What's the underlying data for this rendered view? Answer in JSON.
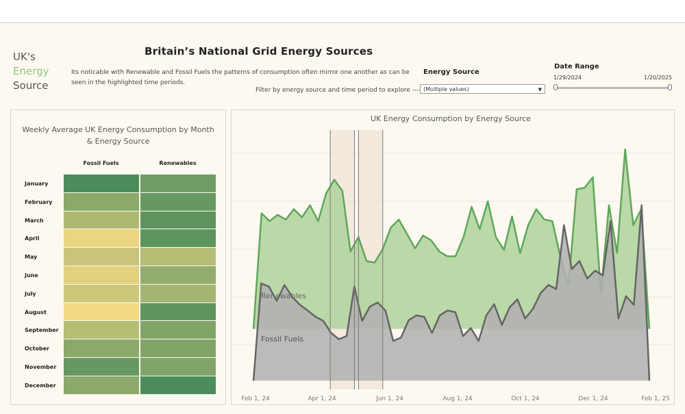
{
  "brand": {
    "line1": "UK's",
    "line2": "Energy",
    "line3": "Source"
  },
  "title": "Britain’s National Grid Energy Sources",
  "description": "Its noticable with Renewable and Fossil Fuels the patterns of consumption often mirror one another as can be seen in the highlighted time periods.",
  "filter_hint": "Filter by energy source and time period to explore ---->",
  "energy_source": {
    "label": "Energy Source",
    "value": "(Multiple values)"
  },
  "date_range": {
    "label": "Date Range",
    "start": "1/29/2024",
    "end": "1/20/2025"
  },
  "colors": {
    "renewables_line": "#5ea65a",
    "renewables_fill": "#b3d4a0",
    "fossil_line": "#646464",
    "fossil_fill": "#b0b0b0",
    "brand_accent": "#94c47f",
    "highlight": "#f0e3d6"
  },
  "chart_data": [
    {
      "type": "heatmap",
      "title": "Weekly Average UK Energy Consumption by Month & Energy Source",
      "columns": [
        "Fossil Fuels",
        "Renewables"
      ],
      "rows": [
        "January",
        "February",
        "March",
        "April",
        "May",
        "June",
        "July",
        "August",
        "September",
        "October",
        "November",
        "December"
      ],
      "intensity": [
        [
          0.95,
          0.75
        ],
        [
          0.6,
          0.8
        ],
        [
          0.4,
          0.85
        ],
        [
          0.05,
          0.85
        ],
        [
          0.25,
          0.35
        ],
        [
          0.1,
          0.55
        ],
        [
          0.22,
          0.45
        ],
        [
          0.0,
          0.85
        ],
        [
          0.35,
          0.65
        ],
        [
          0.6,
          0.65
        ],
        [
          0.8,
          0.65
        ],
        [
          0.6,
          0.95
        ]
      ]
    },
    {
      "type": "area",
      "title": "UK Energy Consumption by Energy Source",
      "x_ticks": [
        "Feb 1, 24",
        "Apr 1, 24",
        "Jun 1, 24",
        "Aug 1, 24",
        "Oct 1, 24",
        "Dec 1, 24",
        "Feb 1, 25"
      ],
      "y_range": [
        0,
        320
      ],
      "highlight_ranges": [
        [
          9.5,
          12.5
        ],
        [
          13,
          16
        ]
      ],
      "series": [
        {
          "name": "Renewables",
          "baseline": 75,
          "values": [
            75,
            220,
            210,
            218,
            212,
            225,
            215,
            230,
            210,
            245,
            262,
            248,
            172,
            190,
            160,
            158,
            175,
            202,
            212,
            194,
            176,
            192,
            186,
            172,
            166,
            166,
            190,
            228,
            200,
            235,
            190,
            174,
            216,
            170,
            205,
            225,
            212,
            210,
            165,
            130,
            250,
            252,
            265,
            120,
            230,
            170,
            300,
            205,
            225,
            75
          ]
        },
        {
          "name": "Fossil Fuels",
          "baseline": 10,
          "values": [
            10,
            132,
            128,
            110,
            130,
            115,
            105,
            98,
            90,
            85,
            70,
            62,
            66,
            128,
            85,
            103,
            108,
            98,
            60,
            64,
            86,
            92,
            90,
            70,
            92,
            98,
            96,
            66,
            76,
            60,
            92,
            106,
            80,
            102,
            112,
            88,
            100,
            120,
            130,
            125,
            205,
            150,
            160,
            138,
            148,
            142,
            210,
            88,
            116,
            105,
            230,
            10
          ]
        }
      ]
    }
  ]
}
